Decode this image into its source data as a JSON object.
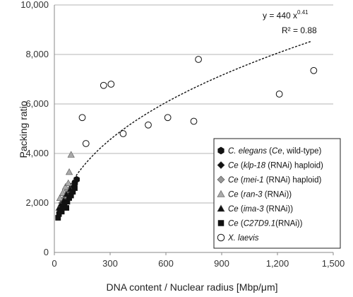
{
  "chart_data": {
    "type": "scatter",
    "xlabel": "DNA content / Nuclear radius [Mbp/μm]",
    "ylabel": "Packing ratio",
    "xlim": [
      0,
      1500
    ],
    "ylim": [
      0,
      10000
    ],
    "xticks": [
      0,
      300,
      600,
      900,
      1200,
      1500
    ],
    "yticks": [
      0,
      2000,
      4000,
      6000,
      8000,
      10000
    ],
    "xtick_labels": [
      "0",
      "300",
      "600",
      "900",
      "1,200",
      "1,500"
    ],
    "ytick_labels": [
      "0",
      "2,000",
      "4,000",
      "6,000",
      "8,000",
      "10,000"
    ],
    "grid": "horizontal",
    "legend_position": "bottom-right",
    "fit": {
      "type": "power",
      "a": 440,
      "b": 0.41,
      "x_range": [
        60,
        1380
      ],
      "equation_base": "y = 440 x",
      "equation_exponent": "0.41",
      "r2_label": "R² = 0.88"
    },
    "series": [
      {
        "name_parts": [
          {
            "t": "C. elegans",
            "i": true
          },
          {
            "t": " (",
            "i": false
          },
          {
            "t": "Ce",
            "i": true
          },
          {
            "t": ", wild-type)",
            "i": false
          }
        ],
        "marker": "hexagon",
        "color": "#111111",
        "points": [
          [
            95,
            2600
          ],
          [
            110,
            2800
          ],
          [
            120,
            2950
          ]
        ]
      },
      {
        "name_parts": [
          {
            "t": "Ce",
            "i": true
          },
          {
            "t": " (",
            "i": false
          },
          {
            "t": "klp-18",
            "i": true
          },
          {
            "t": " (RNAi) haploid)",
            "i": false
          }
        ],
        "marker": "diamond",
        "color": "#111111",
        "points": [
          [
            55,
            2000
          ],
          [
            65,
            2200
          ],
          [
            75,
            2400
          ]
        ]
      },
      {
        "name_parts": [
          {
            "t": "Ce",
            "i": true
          },
          {
            "t": " (",
            "i": false
          },
          {
            "t": "mei-1",
            "i": true
          },
          {
            "t": " (RNAi) haploid)",
            "i": false
          }
        ],
        "marker": "diamond",
        "color": "#999999",
        "points": [
          [
            40,
            2000
          ],
          [
            50,
            2150
          ],
          [
            60,
            2300
          ],
          [
            70,
            2500
          ]
        ]
      },
      {
        "name_parts": [
          {
            "t": "Ce",
            "i": true
          },
          {
            "t": " (",
            "i": false
          },
          {
            "t": "ran-3",
            "i": true
          },
          {
            "t": " (RNAi))",
            "i": false
          }
        ],
        "marker": "triangle",
        "color": "#aaaaaa",
        "points": [
          [
            30,
            2200
          ],
          [
            45,
            2400
          ],
          [
            60,
            2650
          ],
          [
            75,
            2800
          ],
          [
            80,
            3250
          ],
          [
            90,
            3950
          ]
        ]
      },
      {
        "name_parts": [
          {
            "t": "Ce",
            "i": true
          },
          {
            "t": " (",
            "i": false
          },
          {
            "t": "ima-3",
            "i": true
          },
          {
            "t": " (RNAi))",
            "i": false
          }
        ],
        "marker": "triangle",
        "color": "#111111",
        "points": [
          [
            25,
            1800
          ],
          [
            35,
            1950
          ],
          [
            50,
            2100
          ],
          [
            65,
            2350
          ],
          [
            85,
            2550
          ]
        ]
      },
      {
        "name_parts": [
          {
            "t": "Ce",
            "i": true
          },
          {
            "t": " (",
            "i": false
          },
          {
            "t": "C27D9.1",
            "i": true
          },
          {
            "t": "(RNAi))",
            "i": false
          }
        ],
        "marker": "square",
        "color": "#111111",
        "points": [
          [
            20,
            1400
          ],
          [
            25,
            1550
          ],
          [
            30,
            1700
          ],
          [
            40,
            1650
          ],
          [
            45,
            1850
          ],
          [
            55,
            1950
          ],
          [
            65,
            1800
          ],
          [
            70,
            2050
          ],
          [
            80,
            2200
          ],
          [
            90,
            2300
          ],
          [
            100,
            2450
          ],
          [
            110,
            2600
          ]
        ]
      },
      {
        "name_parts": [
          {
            "t": "X. laevis",
            "i": true
          }
        ],
        "marker": "circle-open",
        "color": "#111111",
        "points": [
          [
            150,
            5450
          ],
          [
            170,
            4400
          ],
          [
            265,
            6750
          ],
          [
            305,
            6800
          ],
          [
            370,
            4800
          ],
          [
            505,
            5150
          ],
          [
            610,
            5450
          ],
          [
            750,
            5300
          ],
          [
            775,
            7800
          ],
          [
            1210,
            6400
          ],
          [
            1395,
            7350
          ]
        ]
      }
    ]
  }
}
